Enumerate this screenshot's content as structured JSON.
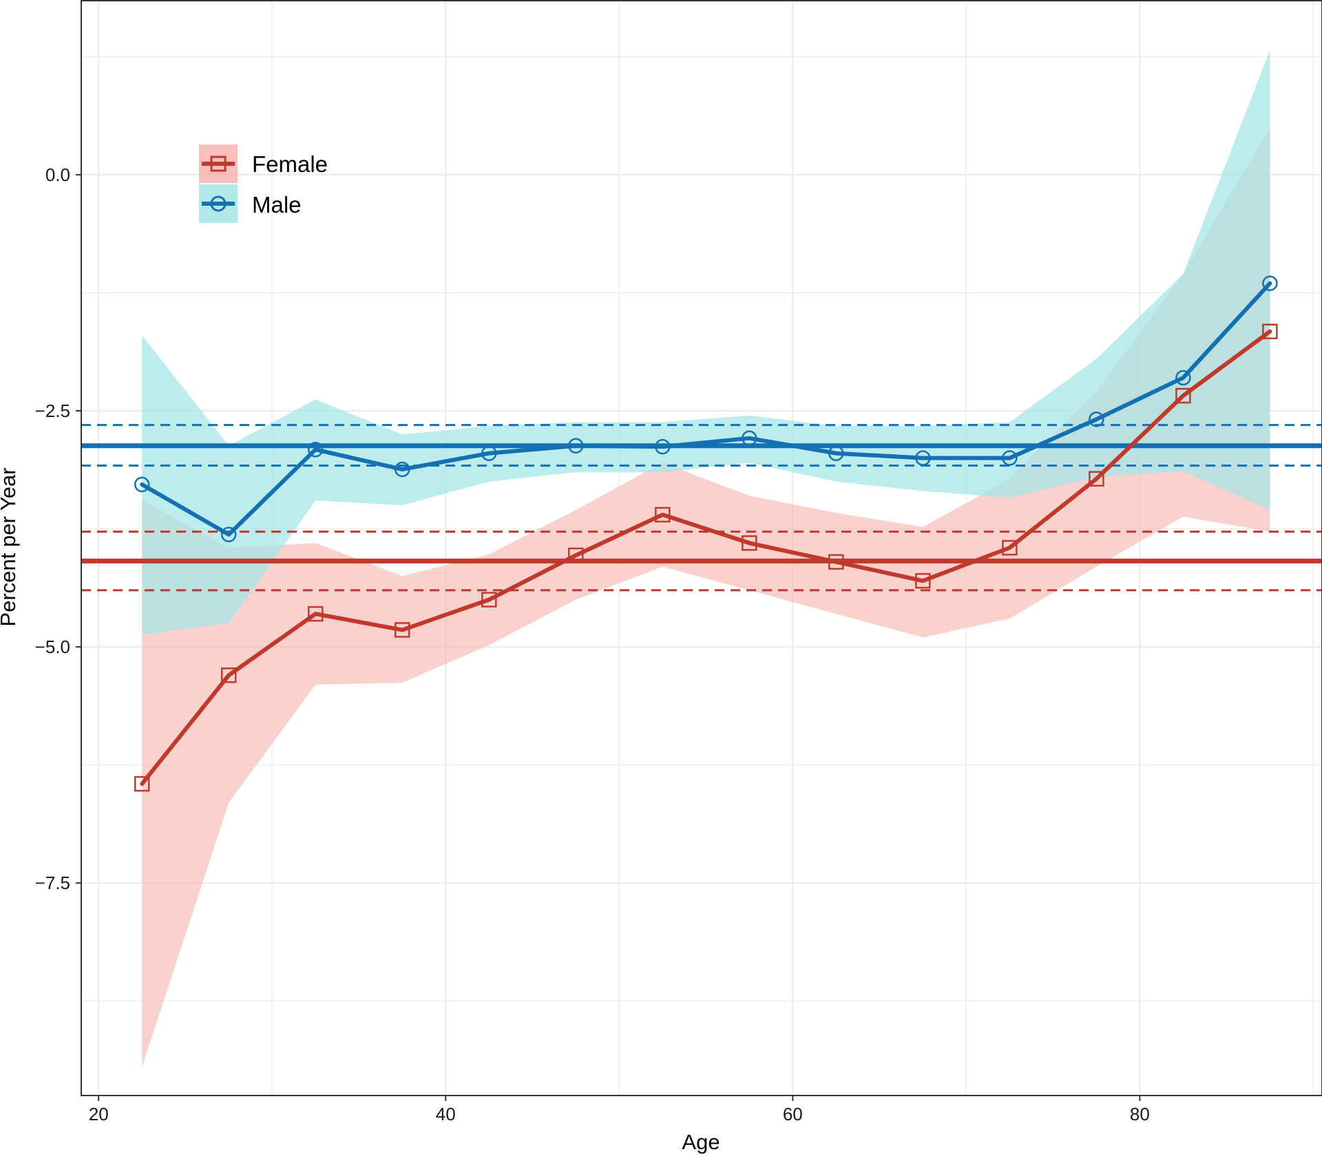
{
  "chart_data": {
    "type": "line",
    "xlabel": "Age",
    "ylabel": "Percent per Year",
    "xlim": [
      19,
      90.5
    ],
    "ylim": [
      -9.75,
      1.85
    ],
    "x_ticks": [
      20,
      40,
      60,
      80
    ],
    "x_tick_labels": [
      "20",
      "40",
      "60",
      "80"
    ],
    "y_ticks": [
      0.0,
      -2.5,
      -5.0,
      -7.5
    ],
    "y_tick_labels": [
      "0.0",
      "−2.5",
      "−5.0",
      "−7.5"
    ],
    "grid": true,
    "legend_position": "top-left",
    "x": [
      22.5,
      27.5,
      32.5,
      37.5,
      42.5,
      47.5,
      52.5,
      57.5,
      62.5,
      67.5,
      72.5,
      77.5,
      82.5,
      87.5
    ],
    "series": [
      {
        "name": "Female",
        "color": "#c0392b",
        "band_color": "#f8b4b0",
        "marker": "square",
        "values": [
          -6.45,
          -5.3,
          -4.65,
          -4.82,
          -4.5,
          -4.03,
          -3.6,
          -3.9,
          -4.1,
          -4.3,
          -3.95,
          -3.22,
          -2.34,
          -1.66
        ],
        "ci_lower": [
          -9.45,
          -6.65,
          -5.4,
          -5.38,
          -4.98,
          -4.5,
          -4.15,
          -4.4,
          -4.65,
          -4.9,
          -4.7,
          -4.15,
          -3.62,
          -3.78
        ],
        "ci_upper": [
          -3.45,
          -3.95,
          -3.9,
          -4.25,
          -4.02,
          -3.55,
          -3.05,
          -3.4,
          -3.58,
          -3.73,
          -3.22,
          -2.3,
          -1.05,
          0.5
        ],
        "mean": -4.09,
        "mean_ci": [
          -4.4,
          -3.78
        ]
      },
      {
        "name": "Male",
        "color": "#1470b3",
        "band_color": "#a3e4e6",
        "marker": "circle",
        "values": [
          -3.28,
          -3.81,
          -2.91,
          -3.12,
          -2.95,
          -2.87,
          -2.88,
          -2.79,
          -2.95,
          -3.0,
          -3.0,
          -2.59,
          -2.15,
          -1.15
        ],
        "ci_lower": [
          -4.87,
          -4.75,
          -3.45,
          -3.5,
          -3.25,
          -3.15,
          -3.15,
          -3.05,
          -3.25,
          -3.35,
          -3.42,
          -3.2,
          -3.14,
          -3.55
        ],
        "ci_upper": [
          -1.7,
          -2.87,
          -2.38,
          -2.75,
          -2.66,
          -2.62,
          -2.62,
          -2.55,
          -2.66,
          -2.66,
          -2.62,
          -1.95,
          -1.05,
          1.32
        ],
        "mean": -2.87,
        "mean_ci": [
          -3.08,
          -2.65
        ]
      }
    ]
  }
}
